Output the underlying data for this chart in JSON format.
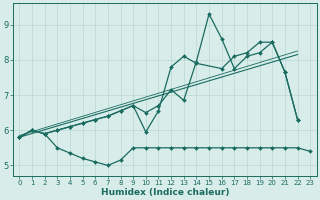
{
  "xlabel": "Humidex (Indice chaleur)",
  "x_values": [
    0,
    1,
    2,
    3,
    4,
    5,
    6,
    7,
    8,
    9,
    10,
    11,
    12,
    13,
    14,
    15,
    16,
    17,
    18,
    19,
    20,
    21,
    22,
    23
  ],
  "series1_x": [
    0,
    1,
    2,
    3,
    4,
    5,
    6,
    7,
    8,
    9,
    10,
    11,
    12,
    13,
    14,
    15,
    16,
    17,
    18,
    19,
    20,
    21,
    22,
    23
  ],
  "series1_y": [
    5.8,
    6.0,
    5.9,
    5.5,
    5.35,
    5.2,
    5.1,
    5.0,
    5.15,
    5.5,
    5.5,
    5.5,
    5.5,
    5.5,
    5.5,
    5.5,
    5.5,
    5.5,
    5.5,
    5.5,
    5.5,
    5.5,
    5.5,
    5.4
  ],
  "series2_x": [
    0,
    1,
    2,
    3,
    4,
    5,
    6,
    7,
    8,
    9,
    10,
    11,
    12,
    13,
    14,
    16,
    17,
    18,
    19,
    20,
    21,
    22
  ],
  "series2_y": [
    5.8,
    6.0,
    5.9,
    6.0,
    6.1,
    6.2,
    6.3,
    6.4,
    6.55,
    6.7,
    5.95,
    6.55,
    7.8,
    8.1,
    7.9,
    7.75,
    8.1,
    8.2,
    8.5,
    8.5,
    7.65,
    6.3
  ],
  "series3_x": [
    0,
    1,
    2,
    3,
    4,
    5,
    6,
    7,
    8,
    9,
    10,
    11,
    12,
    13,
    14,
    15,
    16,
    17,
    18,
    19,
    20,
    21,
    22
  ],
  "series3_y": [
    5.8,
    6.0,
    5.9,
    6.0,
    6.1,
    6.2,
    6.3,
    6.4,
    6.55,
    6.7,
    6.5,
    6.7,
    7.15,
    6.85,
    7.95,
    9.3,
    8.6,
    7.75,
    8.1,
    8.2,
    8.5,
    7.65,
    6.3
  ],
  "trend1_x": [
    0,
    22
  ],
  "trend1_y": [
    5.8,
    8.15
  ],
  "trend2_x": [
    0,
    22
  ],
  "trend2_y": [
    5.85,
    8.25
  ],
  "line_color": "#1a6b60",
  "bg_color": "#d8ecea",
  "grid_color": "#b8d8d4",
  "ylim": [
    4.7,
    9.6
  ],
  "yticks": [
    5,
    6,
    7,
    8,
    9
  ],
  "xlim": [
    -0.5,
    23.5
  ]
}
